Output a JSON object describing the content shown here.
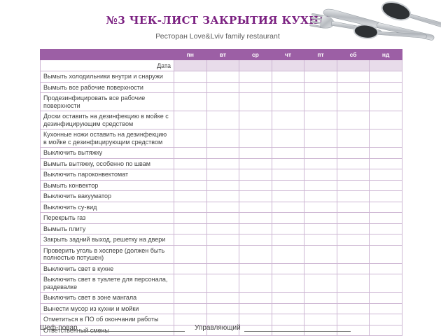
{
  "header": {
    "title": "№3 ЧЕК-ЛИСТ ЗАКРЫТИЯ КУХНИ",
    "subtitle": "Ресторан Love&Lviv family restaurant"
  },
  "table": {
    "day_headers": [
      "пн",
      "вт",
      "ср",
      "чт",
      "пт",
      "сб",
      "нд"
    ],
    "date_label": "Дата",
    "tasks": [
      "Вымыть холодильники внутри и снаружи",
      "Вымыть все рабочие поверхности",
      "Продезинфицировать все рабочие поверхности",
      "Доски оставить на дезинфекцию в мойке с дезинфицирующим средством",
      "Кухонные ножи оставить на дезинфекцию в мойке с дезинфицирующим средством",
      "Выключить вытяжку",
      "Вымыть вытяжку, особенно по швам",
      "Выключить пароконвектомат",
      "Вымыть конвектор",
      "Выключить вакууматор",
      "Выключить су-вид",
      "Перекрыть газ",
      "Вымыть плиту",
      "Закрыть задний выход, решетку на двери",
      "Проверить уголь в хоспере (должен быть полностью потушен)",
      "Выключить свет в кухне",
      "Выключить свет в туалете для персонала, раздевалке",
      "Выключить свет в зоне мангала",
      "Вынести мусор из кухни и мойки",
      "Отметиться в ПО об окончании работы",
      "Ответственный смены"
    ]
  },
  "footer": {
    "chef_label": "Шеф-повар",
    "manager_label": "Управляющий"
  },
  "colors": {
    "title": "#7b2181",
    "header_bar": "#9c5fa5",
    "date_cell_fill": "#e8dcea",
    "grid_line": "#cdb6d3",
    "text": "#3f3f3f"
  }
}
